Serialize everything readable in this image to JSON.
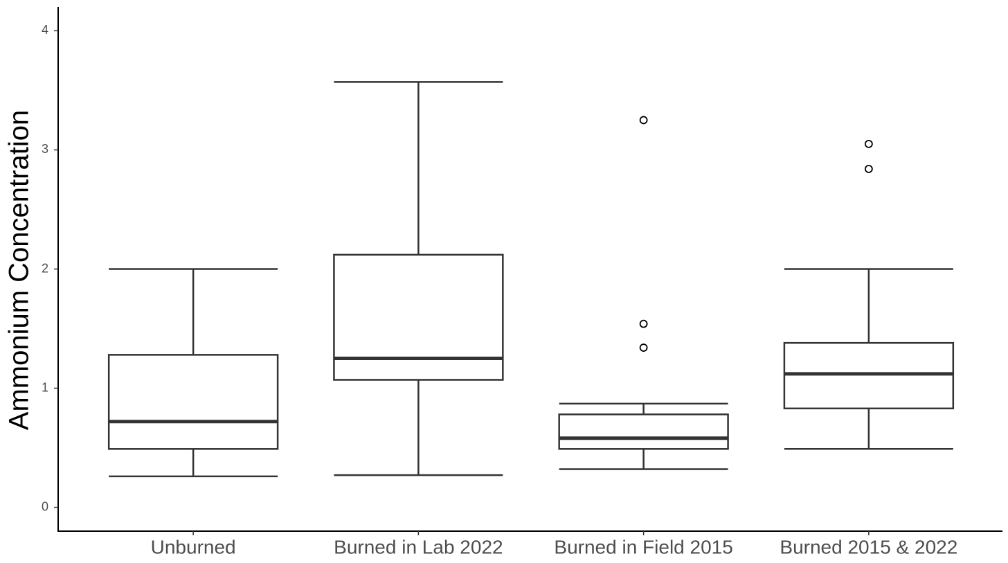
{
  "chart_data": {
    "type": "box",
    "y_label": "Ammonium Concentration",
    "categories": [
      "Unburned",
      "Burned in Lab 2022",
      "Burned in Field 2015",
      "Burned 2015 & 2022"
    ],
    "boxes": [
      {
        "min": 0.26,
        "q1": 0.49,
        "median": 0.72,
        "q3": 1.28,
        "max": 2.0,
        "outliers": []
      },
      {
        "min": 0.27,
        "q1": 1.07,
        "median": 1.25,
        "q3": 2.12,
        "max": 3.57,
        "outliers": []
      },
      {
        "min": 0.32,
        "q1": 0.49,
        "median": 0.58,
        "q3": 0.78,
        "max": 0.87,
        "outliers": [
          1.54,
          1.34,
          3.25
        ]
      },
      {
        "min": 0.49,
        "q1": 0.83,
        "median": 1.12,
        "q3": 1.38,
        "max": 2.0,
        "outliers": [
          3.05,
          2.84
        ]
      }
    ],
    "color": "#333333",
    "ylim": [
      -0.2,
      4.2
    ],
    "yticks": [
      0,
      1,
      2,
      3,
      4
    ],
    "grid": false
  }
}
